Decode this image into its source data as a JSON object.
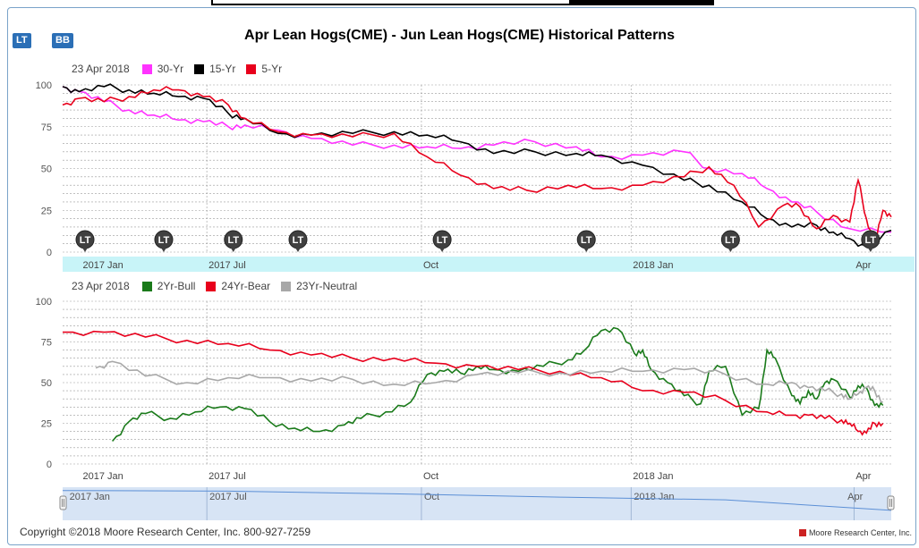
{
  "header": {
    "btn_lt": "LT",
    "btn_bb": "BB",
    "title": "Apr Lean Hogs(CME) - Jun Lean Hogs(CME) Historical Patterns"
  },
  "footer": {
    "copyright": "Copyright ©2018 Moore Research Center, Inc. 800-927-7259",
    "brand": "Moore Research Center, Inc."
  },
  "colors": {
    "magenta": "#ff33ff",
    "black": "#000000",
    "red": "#e8001c",
    "green": "#1a7a1a",
    "gray": "#a8a8a8",
    "band": "#c8f4f8",
    "navigator": "#d7e4f5"
  },
  "marker_label": "LT",
  "chart_data": [
    {
      "type": "line",
      "legend_date": "23 Apr 2018",
      "series": [
        {
          "name": "30-Yr",
          "color": "#ff33ff",
          "x": [
            0,
            2,
            5,
            8,
            11,
            14,
            17,
            20,
            22,
            26,
            30,
            35,
            40,
            44,
            48,
            52,
            57,
            62,
            65,
            70,
            75,
            78,
            82,
            85,
            88,
            91,
            95,
            100
          ],
          "y": [
            99,
            96,
            90,
            85,
            82,
            79,
            78,
            75,
            76,
            73,
            68,
            64,
            64,
            63,
            62,
            64,
            66,
            63,
            57,
            58,
            60,
            50,
            47,
            38,
            30,
            24,
            14,
            12
          ]
        },
        {
          "name": "15-Yr",
          "color": "#000000",
          "x": [
            0,
            2,
            5,
            8,
            11,
            14,
            17,
            20,
            22,
            26,
            30,
            35,
            40,
            44,
            48,
            52,
            57,
            62,
            65,
            70,
            75,
            78,
            82,
            85,
            88,
            91,
            93,
            95,
            97,
            100
          ],
          "y": [
            99,
            96,
            99,
            97,
            95,
            93,
            92,
            83,
            80,
            71,
            70,
            71,
            72,
            70,
            66,
            59,
            60,
            59,
            58,
            52,
            43,
            40,
            30,
            20,
            15,
            16,
            12,
            8,
            3,
            13
          ]
        },
        {
          "name": "5-Yr",
          "color": "#e8001c",
          "x": [
            0,
            2,
            5,
            8,
            11,
            14,
            17,
            20,
            22,
            26,
            30,
            35,
            40,
            44,
            48,
            52,
            56,
            61,
            65,
            70,
            75,
            78,
            81,
            84,
            87,
            89,
            91,
            93,
            95,
            96,
            97,
            98,
            99,
            100
          ],
          "y": [
            88,
            92,
            90,
            93,
            97,
            97,
            93,
            88,
            80,
            72,
            70,
            69,
            71,
            57,
            46,
            38,
            37,
            40,
            38,
            40,
            45,
            51,
            40,
            15,
            28,
            27,
            14,
            22,
            18,
            43,
            20,
            4,
            25,
            21
          ]
        }
      ],
      "x_ticks": [
        "2017 Jan",
        "2017 Jul",
        "Oct",
        "2018 Jan",
        "Apr"
      ],
      "ylim": [
        0,
        100
      ],
      "y_ticks": [
        0,
        25,
        50,
        75,
        100
      ],
      "markers": 10
    },
    {
      "type": "line",
      "legend_date": "23 Apr 2018",
      "series": [
        {
          "name": "2Yr-Bull",
          "color": "#1a7a1a",
          "x": [
            6,
            8,
            10,
            13,
            16,
            19,
            22,
            25,
            28,
            31,
            34,
            36,
            39,
            42,
            44,
            46,
            48,
            50,
            52,
            55,
            58,
            61,
            63,
            65,
            67,
            69,
            70,
            71,
            73,
            75,
            77,
            78,
            80,
            82,
            84,
            85,
            86,
            88,
            89,
            90,
            91,
            92,
            93,
            95,
            96,
            97,
            98,
            99
          ],
          "y": [
            14,
            26,
            31,
            28,
            32,
            35,
            34,
            26,
            22,
            20,
            24,
            28,
            32,
            38,
            55,
            57,
            56,
            60,
            58,
            57,
            60,
            64,
            70,
            82,
            83,
            68,
            70,
            58,
            50,
            42,
            37,
            57,
            60,
            30,
            34,
            70,
            65,
            42,
            37,
            45,
            40,
            50,
            52,
            41,
            48,
            47,
            36,
            36
          ]
        },
        {
          "name": "24Yr-Bear",
          "color": "#e8001c",
          "x": [
            0,
            5,
            10,
            15,
            20,
            25,
            30,
            35,
            40,
            45,
            50,
            55,
            60,
            65,
            70,
            75,
            80,
            85,
            88,
            90,
            92,
            94,
            95,
            96,
            97,
            98,
            99
          ],
          "y": [
            81,
            81,
            78,
            76,
            74,
            70,
            67,
            65,
            65,
            62,
            60,
            58,
            57,
            53,
            45,
            44,
            39,
            32,
            30,
            30,
            28,
            27,
            25,
            20,
            19,
            25,
            25
          ]
        },
        {
          "name": "23Yr-Neutral",
          "color": "#a8a8a8",
          "x": [
            4,
            6,
            10,
            15,
            20,
            25,
            30,
            35,
            40,
            45,
            50,
            55,
            60,
            65,
            70,
            75,
            80,
            85,
            88,
            90,
            92,
            94,
            95,
            96,
            97,
            98,
            99
          ],
          "y": [
            59,
            63,
            54,
            50,
            53,
            53,
            51,
            52,
            49,
            50,
            55,
            56,
            56,
            57,
            57,
            58,
            55,
            49,
            50,
            47,
            45,
            43,
            40,
            43,
            47,
            45,
            38
          ]
        }
      ],
      "x_ticks": [
        "2017 Jan",
        "2017 Jul",
        "Oct",
        "2018 Jan",
        "Apr"
      ],
      "ylim": [
        0,
        100
      ],
      "y_ticks": [
        0,
        25,
        50,
        75,
        100
      ]
    }
  ],
  "navigator": {
    "labels": [
      "2017 Jan",
      "2017 Jul",
      "Oct",
      "2018 Jan",
      "Apr"
    ],
    "x": [
      0,
      20,
      40,
      60,
      80,
      100
    ],
    "y": [
      90,
      88,
      80,
      70,
      62,
      30
    ]
  }
}
